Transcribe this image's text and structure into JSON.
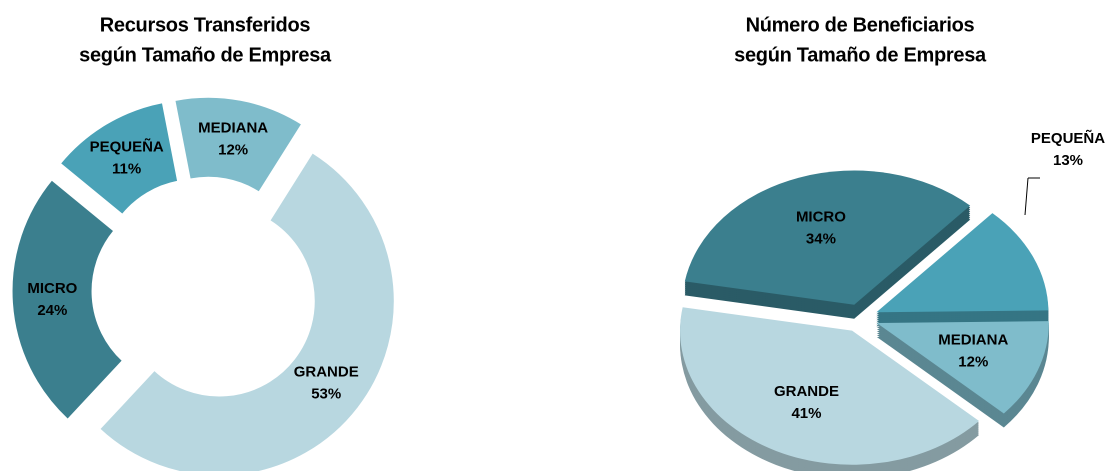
{
  "chart_data": [
    {
      "type": "donut",
      "title": [
        "Recursos Transferidos",
        "según Tamaño de Empresa"
      ],
      "categories": [
        "MICRO",
        "PEQUEÑA",
        "MEDIANA",
        "GRANDE"
      ],
      "values": [
        24,
        11,
        12,
        53
      ],
      "value_labels": [
        "24%",
        "11%",
        "12%",
        "53%"
      ],
      "colors": [
        "#3b7f8e",
        "#4aa2b7",
        "#7fbccb",
        "#b8d7e0"
      ]
    },
    {
      "type": "pie3d",
      "title": [
        "Número de Beneficiarios",
        "según Tamaño de Empresa"
      ],
      "categories": [
        "MICRO",
        "PEQUEÑA",
        "MEDIANA",
        "GRANDE"
      ],
      "values": [
        34,
        13,
        12,
        41
      ],
      "value_labels": [
        "34%",
        "13%",
        "12%",
        "41%"
      ],
      "colors": [
        "#3b7f8e",
        "#4aa2b7",
        "#7fbccb",
        "#b8d7e0"
      ]
    }
  ]
}
